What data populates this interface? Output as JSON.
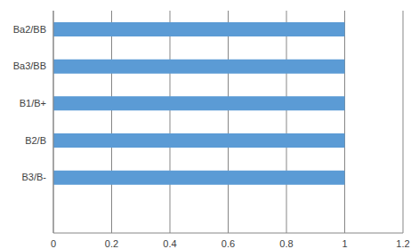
{
  "chart_data": {
    "type": "bar",
    "orientation": "horizontal",
    "categories": [
      "Ba2/BB",
      "Ba3/BB",
      "B1/B+",
      "B2/B",
      "B3/B-",
      null
    ],
    "values": [
      1,
      1,
      1,
      1,
      1,
      null
    ],
    "color": "#5b9bd5",
    "xlim": [
      0,
      1.2
    ],
    "xticks": [
      0,
      0.2,
      0.4,
      0.6,
      0.8,
      1,
      1.2
    ],
    "grid": true
  }
}
